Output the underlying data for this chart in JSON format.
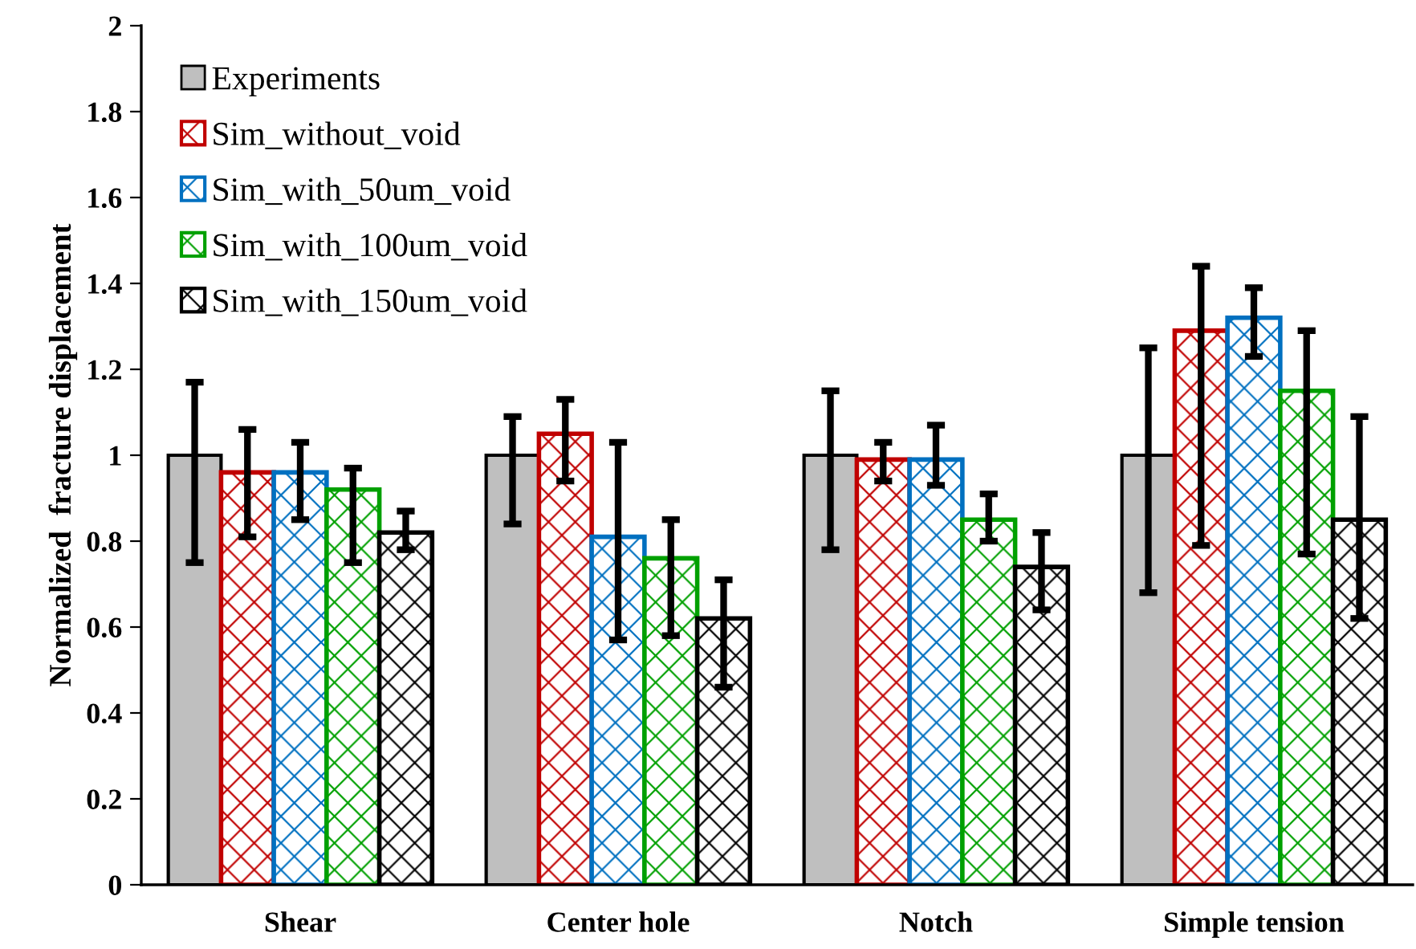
{
  "chart_data": {
    "type": "bar",
    "ylabel": "Normalized  fracture displacement",
    "categories": [
      "Shear",
      "Center hole",
      "Notch",
      "Simple tension"
    ],
    "series": [
      {
        "name": "Experiments",
        "color": "#bfbfbf",
        "values": [
          1.0,
          1.0,
          1.0,
          1.0
        ],
        "errors": [
          [
            0.75,
            1.17
          ],
          [
            0.84,
            1.09
          ],
          [
            0.78,
            1.15
          ],
          [
            0.68,
            1.25
          ]
        ]
      },
      {
        "name": "Sim_without_void",
        "color": "#c00000",
        "values": [
          0.96,
          1.05,
          0.99,
          1.29
        ],
        "errors": [
          [
            0.81,
            1.06
          ],
          [
            0.94,
            1.13
          ],
          [
            0.94,
            1.03
          ],
          [
            0.79,
            1.44
          ]
        ]
      },
      {
        "name": "Sim_with_50um_void",
        "color": "#0070c0",
        "values": [
          0.96,
          0.81,
          0.99,
          1.32
        ],
        "errors": [
          [
            0.85,
            1.03
          ],
          [
            0.57,
            1.03
          ],
          [
            0.93,
            1.07
          ],
          [
            1.23,
            1.39
          ]
        ]
      },
      {
        "name": "Sim_with_100um_void",
        "color": "#00a000",
        "values": [
          0.92,
          0.76,
          0.85,
          1.15
        ],
        "errors": [
          [
            0.75,
            0.97
          ],
          [
            0.58,
            0.85
          ],
          [
            0.8,
            0.91
          ],
          [
            0.77,
            1.29
          ]
        ]
      },
      {
        "name": "Sim_with_150um_void",
        "color": "#000000",
        "values": [
          0.82,
          0.62,
          0.74,
          0.85
        ],
        "errors": [
          [
            0.78,
            0.87
          ],
          [
            0.46,
            0.71
          ],
          [
            0.64,
            0.82
          ],
          [
            0.62,
            1.09
          ]
        ]
      }
    ],
    "ylim": [
      0,
      2
    ],
    "yticks": [
      0,
      0.2,
      0.4,
      0.6,
      0.8,
      1,
      1.2,
      1.4,
      1.6,
      1.8,
      2
    ],
    "grid": false,
    "legend": "top left"
  }
}
